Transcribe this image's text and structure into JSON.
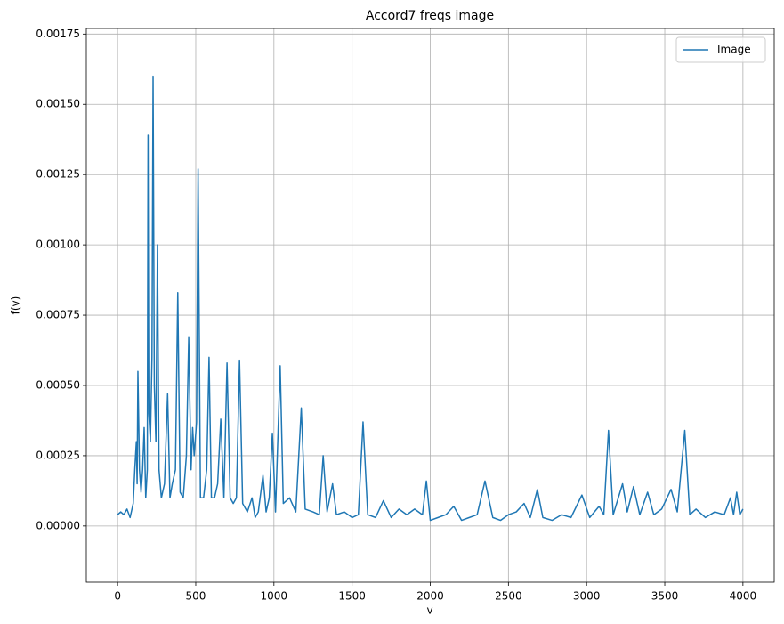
{
  "chart_data": {
    "type": "line",
    "title": "Accord7 freqs image",
    "xlabel": "v",
    "ylabel": "f(v)",
    "x": [
      0,
      20,
      40,
      60,
      80,
      100,
      110,
      120,
      125,
      130,
      140,
      150,
      160,
      170,
      180,
      190,
      195,
      200,
      210,
      220,
      227,
      235,
      245,
      255,
      265,
      280,
      300,
      320,
      335,
      350,
      370,
      385,
      400,
      420,
      440,
      455,
      470,
      480,
      490,
      505,
      515,
      530,
      550,
      570,
      585,
      600,
      620,
      640,
      660,
      680,
      700,
      720,
      740,
      760,
      780,
      800,
      830,
      860,
      880,
      900,
      930,
      950,
      970,
      990,
      1010,
      1040,
      1060,
      1100,
      1140,
      1175,
      1200,
      1250,
      1290,
      1315,
      1340,
      1375,
      1400,
      1450,
      1500,
      1540,
      1570,
      1600,
      1650,
      1700,
      1750,
      1800,
      1850,
      1900,
      1950,
      1975,
      2000,
      2050,
      2100,
      2150,
      2200,
      2250,
      2300,
      2350,
      2400,
      2450,
      2500,
      2550,
      2600,
      2640,
      2685,
      2720,
      2780,
      2840,
      2900,
      2970,
      3020,
      3080,
      3110,
      3140,
      3170,
      3230,
      3260,
      3300,
      3340,
      3390,
      3430,
      3480,
      3540,
      3580,
      3628,
      3660,
      3700,
      3760,
      3820,
      3880,
      3920,
      3940,
      3960,
      3980,
      4000
    ],
    "series": [
      {
        "name": "Image",
        "color": "#1f77b4",
        "values": [
          4e-05,
          5e-05,
          4e-05,
          6e-05,
          3e-05,
          8e-05,
          0.0002,
          0.0003,
          0.00015,
          0.00055,
          0.0002,
          0.00012,
          0.0002,
          0.00035,
          0.0001,
          0.0002,
          0.00139,
          0.0004,
          0.0003,
          0.0006,
          0.0016,
          0.0005,
          0.0003,
          0.001,
          0.0002,
          0.0001,
          0.00015,
          0.00047,
          0.0001,
          0.00015,
          0.0002,
          0.00083,
          0.00012,
          0.0001,
          0.00025,
          0.00067,
          0.0002,
          0.00035,
          0.00025,
          0.00037,
          0.00127,
          0.0001,
          0.0001,
          0.0002,
          0.0006,
          0.0001,
          0.0001,
          0.00015,
          0.00038,
          0.0001,
          0.00058,
          0.0001,
          8e-05,
          0.0001,
          0.00059,
          8e-05,
          5e-05,
          0.0001,
          3e-05,
          5e-05,
          0.00018,
          5e-05,
          0.0001,
          0.00033,
          5e-05,
          0.00057,
          8e-05,
          0.0001,
          5e-05,
          0.00042,
          6e-05,
          5e-05,
          4e-05,
          0.00025,
          5e-05,
          0.00015,
          4e-05,
          5e-05,
          3e-05,
          4e-05,
          0.00037,
          4e-05,
          3e-05,
          9e-05,
          3e-05,
          6e-05,
          4e-05,
          6e-05,
          4e-05,
          0.00016,
          2e-05,
          3e-05,
          4e-05,
          7e-05,
          2e-05,
          3e-05,
          4e-05,
          0.00016,
          3e-05,
          2e-05,
          4e-05,
          5e-05,
          8e-05,
          3e-05,
          0.00013,
          3e-05,
          2e-05,
          4e-05,
          3e-05,
          0.00011,
          3e-05,
          7e-05,
          4e-05,
          0.00034,
          4e-05,
          0.00015,
          5e-05,
          0.00014,
          4e-05,
          0.00012,
          4e-05,
          6e-05,
          0.00013,
          5e-05,
          0.00034,
          4e-05,
          6e-05,
          3e-05,
          5e-05,
          4e-05,
          0.0001,
          4e-05,
          0.00012,
          4e-05,
          6e-05
        ]
      }
    ],
    "xlim": [
      -200,
      4200
    ],
    "ylim": [
      -0.0002,
      0.00177
    ],
    "xticks": [
      0,
      500,
      1000,
      1500,
      2000,
      2500,
      3000,
      3500,
      4000
    ],
    "yticks": [
      {
        "value": 0,
        "label": "0.00000"
      },
      {
        "value": 0.00025,
        "label": "0.00025"
      },
      {
        "value": 0.0005,
        "label": "0.00050"
      },
      {
        "value": 0.00075,
        "label": "0.00075"
      },
      {
        "value": 0.001,
        "label": "0.00100"
      },
      {
        "value": 0.00125,
        "label": "0.00125"
      },
      {
        "value": 0.0015,
        "label": "0.00150"
      },
      {
        "value": 0.00175,
        "label": "0.00175"
      }
    ],
    "grid": true,
    "legend": "upper right"
  }
}
